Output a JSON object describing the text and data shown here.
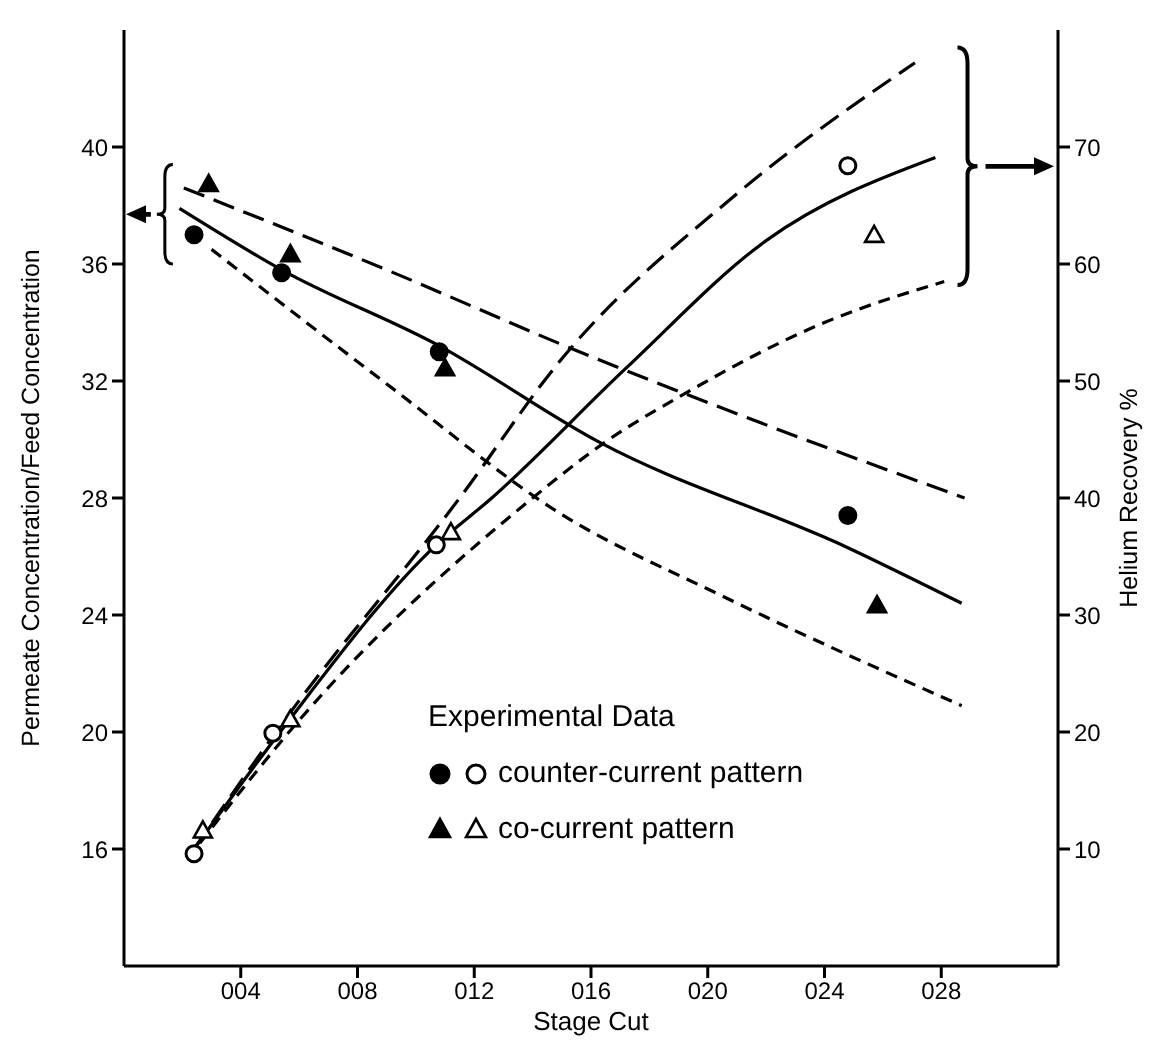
{
  "chart_data": {
    "type": "scatter",
    "xlabel": "Stage Cut",
    "ylabel": "Permeate Concentration/Feed Concentration",
    "y2label": "Helium Recovery %",
    "legend_title": "Experimental Data",
    "legend": "bottom right",
    "grid": false,
    "xlim": [
      0,
      32
    ],
    "xticks": [
      {
        "value": 4,
        "label": "004"
      },
      {
        "value": 8,
        "label": "008"
      },
      {
        "value": 12,
        "label": "012"
      },
      {
        "value": 16,
        "label": "016"
      },
      {
        "value": 20,
        "label": "020"
      },
      {
        "value": 24,
        "label": "024"
      },
      {
        "value": 28,
        "label": "028"
      }
    ],
    "ylim": [
      12,
      44
    ],
    "yticks": [
      16,
      20,
      24,
      28,
      32,
      36,
      40
    ],
    "y2lim": [
      0,
      80
    ],
    "y2ticks": [
      10,
      20,
      30,
      40,
      50,
      60,
      70
    ],
    "series": [
      {
        "type": "line",
        "color": "#000000",
        "line_style": "dashed",
        "marker": "none",
        "x": [
          2.05,
          9.0,
          15.6,
          22.0,
          28.8
        ],
        "values": [
          38.6,
          35.8,
          33.0,
          30.5,
          28.0
        ]
      },
      {
        "type": "line",
        "color": "#000000",
        "line_style": "solid",
        "marker": "none",
        "x": [
          1.9,
          5.4,
          10.8,
          16.3,
          24.8,
          28.7
        ],
        "values": [
          37.9,
          35.8,
          33.2,
          29.9,
          26.3,
          24.4
        ]
      },
      {
        "type": "line",
        "color": "#000000",
        "line_style": "dotted",
        "marker": "none",
        "x": [
          3.0,
          9.0,
          14.9,
          20.6,
          28.7
        ],
        "values": [
          36.5,
          31.9,
          27.5,
          24.6,
          20.9
        ]
      },
      {
        "type": "line",
        "color": "#000000",
        "line_style": "dashed",
        "marker": "none",
        "axis": "y2",
        "x": [
          2.4,
          5.5,
          11.5,
          14.9,
          21.0,
          27.1
        ],
        "values": [
          10,
          21,
          40,
          51.6,
          66,
          77.2
        ]
      },
      {
        "type": "line",
        "color": "#000000",
        "line_style": "solid",
        "marker": "none",
        "axis": "y2",
        "x": [
          2.4,
          5.5,
          10.7,
          12.6,
          17.2,
          22.0,
          27.8
        ],
        "values": [
          10,
          20.5,
          36,
          40,
          51.1,
          62,
          69.1
        ]
      },
      {
        "type": "line",
        "color": "#000000",
        "line_style": "dotted",
        "marker": "none",
        "axis": "y2",
        "x": [
          2.6,
          6.0,
          14.0,
          16.5,
          19.2,
          24.0,
          28.1
        ],
        "values": [
          10.5,
          21,
          40,
          44.8,
          48.9,
          55,
          58.5
        ]
      },
      {
        "color": "#000000",
        "marker": "circle",
        "x": [
          2.4,
          5.4,
          10.8,
          24.8
        ],
        "values": [
          37.0,
          35.7,
          33.0,
          27.4
        ]
      },
      {
        "name": "counter-current pattern",
        "color": "#000000",
        "marker": "circle",
        "axis": "y2",
        "x": [
          2.4,
          5.1,
          10.7,
          24.8
        ],
        "values": [
          9.6,
          19.9,
          36.0,
          68.4
        ]
      },
      {
        "color": "#000000",
        "marker": "triangle",
        "x": [
          2.9,
          5.7,
          11.0,
          25.8
        ],
        "values": [
          38.7,
          36.3,
          32.4,
          24.3
        ]
      },
      {
        "name": "co-current pattern",
        "color": "#000000",
        "marker": "triangle",
        "axis": "y2",
        "x": [
          2.7,
          5.7,
          11.2,
          25.7
        ],
        "values": [
          11.5,
          21,
          37,
          62.4
        ]
      }
    ]
  }
}
